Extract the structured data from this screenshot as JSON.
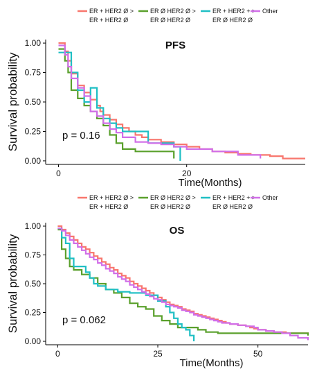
{
  "chart_data": [
    {
      "type": "line",
      "step": true,
      "title": "PFS",
      "xlabel": "Time(Months)",
      "ylabel": "Survival probability",
      "annotation": "p = 0.16",
      "xlim": [
        -2,
        38.5
      ],
      "ylim": [
        -0.03,
        1.03
      ],
      "xticks": [
        0,
        20
      ],
      "yticks": [
        "0.00",
        "0.25",
        "0.50",
        "0.75",
        "1.00"
      ],
      "legend": [
        {
          "line1": "ER + HER2 Ø >",
          "line2": "ER + HER2 Ø",
          "color": "#f8766d"
        },
        {
          "line1": "ER Ø HER2 Ø >",
          "line2": "ER Ø HER2 Ø",
          "color": "#5aa02c"
        },
        {
          "line1": "ER + HER2 + >",
          "line2": "ER Ø HER2 Ø",
          "color": "#1fbfc4"
        },
        {
          "line1": "Other",
          "line2": "",
          "color": "#d16ee8"
        }
      ],
      "series": [
        {
          "color": "#f8766d",
          "x": [
            0,
            1,
            1.5,
            2,
            3,
            4,
            5,
            6,
            6.5,
            7,
            8,
            9,
            10,
            11,
            12,
            13,
            14,
            16,
            18,
            20,
            22,
            24,
            26,
            28,
            30,
            33,
            35,
            38.5
          ],
          "y": [
            1.0,
            0.93,
            0.85,
            0.74,
            0.64,
            0.58,
            0.52,
            0.47,
            0.42,
            0.39,
            0.35,
            0.31,
            0.28,
            0.25,
            0.22,
            0.2,
            0.18,
            0.16,
            0.14,
            0.12,
            0.1,
            0.08,
            0.07,
            0.06,
            0.05,
            0.04,
            0.02,
            0.02
          ]
        },
        {
          "color": "#5aa02c",
          "x": [
            0,
            1,
            1.5,
            2,
            3,
            4,
            5,
            6,
            7,
            8,
            9,
            10,
            12,
            16,
            18
          ],
          "y": [
            0.95,
            0.85,
            0.75,
            0.6,
            0.53,
            0.47,
            0.42,
            0.36,
            0.3,
            0.22,
            0.15,
            0.1,
            0.08,
            0.08,
            0.02
          ]
        },
        {
          "color": "#1fbfc4",
          "x": [
            0,
            1.5,
            2,
            3,
            4,
            5,
            6,
            7,
            8,
            9,
            10,
            14,
            18,
            19
          ],
          "y": [
            0.92,
            0.92,
            0.75,
            0.6,
            0.5,
            0.62,
            0.45,
            0.36,
            0.32,
            0.28,
            0.25,
            0.15,
            0.12,
            0.0
          ]
        },
        {
          "color": "#d16ee8",
          "x": [
            0,
            1,
            1.5,
            2,
            3,
            4,
            5,
            6,
            7,
            8,
            9,
            10,
            12,
            14,
            16,
            18,
            20,
            24,
            28,
            31.5
          ],
          "y": [
            0.98,
            0.9,
            0.8,
            0.7,
            0.62,
            0.55,
            0.42,
            0.38,
            0.32,
            0.27,
            0.24,
            0.2,
            0.16,
            0.15,
            0.14,
            0.12,
            0.1,
            0.08,
            0.05,
            0.02
          ]
        }
      ]
    },
    {
      "type": "line",
      "step": true,
      "title": "OS",
      "xlabel": "Time(Months)",
      "ylabel": "Survival probability",
      "annotation": "p = 0.062",
      "xlim": [
        -3,
        62.5
      ],
      "ylim": [
        -0.03,
        1.03
      ],
      "xticks": [
        0,
        25,
        50
      ],
      "yticks": [
        "0.00",
        "0.25",
        "0.50",
        "0.75",
        "1.00"
      ],
      "legend": [
        {
          "line1": "ER + HER2 Ø >",
          "line2": "ER + HER2 Ø",
          "color": "#f8766d"
        },
        {
          "line1": "ER Ø HER2 Ø >",
          "line2": "ER Ø HER2 Ø",
          "color": "#5aa02c"
        },
        {
          "line1": "ER + HER2 + >",
          "line2": "ER Ø HER2 Ø",
          "color": "#1fbfc4"
        },
        {
          "line1": "Other",
          "line2": "",
          "color": "#d16ee8"
        }
      ],
      "series": [
        {
          "color": "#f8766d",
          "x": [
            0,
            1,
            2,
            3,
            4,
            5,
            6,
            7,
            8,
            9,
            10,
            11,
            12,
            13,
            14,
            15,
            16,
            17,
            18,
            19,
            20,
            21,
            22,
            23,
            24,
            25,
            26,
            27,
            28,
            29,
            30,
            31,
            32,
            33,
            34,
            35,
            36,
            37,
            38,
            39,
            40,
            41,
            42,
            43,
            44,
            45,
            46,
            47,
            48,
            49,
            50,
            51,
            52,
            53,
            54,
            55,
            56,
            57,
            58,
            59,
            60,
            62.5
          ],
          "y": [
            1.0,
            0.97,
            0.94,
            0.91,
            0.88,
            0.85,
            0.82,
            0.8,
            0.77,
            0.74,
            0.72,
            0.69,
            0.67,
            0.64,
            0.62,
            0.59,
            0.57,
            0.55,
            0.52,
            0.5,
            0.48,
            0.46,
            0.44,
            0.42,
            0.4,
            0.38,
            0.36,
            0.34,
            0.32,
            0.31,
            0.3,
            0.28,
            0.27,
            0.26,
            0.24,
            0.23,
            0.22,
            0.21,
            0.2,
            0.19,
            0.18,
            0.17,
            0.16,
            0.15,
            0.15,
            0.14,
            0.14,
            0.13,
            0.12,
            0.11,
            0.1,
            0.1,
            0.09,
            0.09,
            0.08,
            0.08,
            0.08,
            0.07,
            0.07,
            0.07,
            0.07,
            0.06
          ]
        },
        {
          "color": "#5aa02c",
          "x": [
            0,
            1,
            2,
            3,
            4,
            6,
            8,
            10,
            12,
            14,
            16,
            18,
            20,
            22,
            24,
            26,
            28,
            30,
            33,
            35,
            37,
            40,
            45,
            50,
            55,
            60,
            62.5
          ],
          "y": [
            0.97,
            0.8,
            0.72,
            0.65,
            0.62,
            0.58,
            0.55,
            0.5,
            0.45,
            0.42,
            0.38,
            0.33,
            0.3,
            0.28,
            0.22,
            0.18,
            0.15,
            0.12,
            0.12,
            0.1,
            0.08,
            0.07,
            0.07,
            0.07,
            0.07,
            0.07,
            0.05
          ]
        },
        {
          "color": "#1fbfc4",
          "x": [
            0,
            1,
            2,
            3,
            4,
            5,
            7,
            8,
            9,
            10,
            12,
            15,
            18,
            20,
            22,
            25,
            27,
            28,
            29,
            30,
            31,
            32,
            33,
            34
          ],
          "y": [
            0.98,
            0.9,
            0.85,
            0.72,
            0.65,
            0.65,
            0.6,
            0.55,
            0.5,
            0.48,
            0.45,
            0.43,
            0.42,
            0.42,
            0.4,
            0.35,
            0.3,
            0.25,
            0.2,
            0.15,
            0.12,
            0.1,
            0.05,
            0.0
          ]
        },
        {
          "color": "#d16ee8",
          "x": [
            0,
            1,
            2,
            3,
            4,
            5,
            6,
            7,
            8,
            9,
            10,
            11,
            12,
            13,
            14,
            15,
            16,
            17,
            18,
            19,
            20,
            21,
            22,
            23,
            24,
            25,
            26,
            27,
            28,
            29,
            30,
            31,
            32,
            33,
            34,
            35,
            36,
            37,
            38,
            39,
            40,
            41,
            42,
            43,
            44,
            45,
            46,
            47,
            48,
            49,
            50,
            52,
            54,
            56,
            58,
            60,
            62.5
          ],
          "y": [
            0.98,
            0.96,
            0.92,
            0.88,
            0.85,
            0.82,
            0.79,
            0.76,
            0.73,
            0.71,
            0.68,
            0.66,
            0.63,
            0.61,
            0.59,
            0.56,
            0.54,
            0.52,
            0.49,
            0.47,
            0.45,
            0.43,
            0.41,
            0.39,
            0.37,
            0.36,
            0.34,
            0.32,
            0.31,
            0.3,
            0.29,
            0.27,
            0.26,
            0.25,
            0.23,
            0.22,
            0.21,
            0.2,
            0.19,
            0.18,
            0.17,
            0.16,
            0.16,
            0.15,
            0.15,
            0.14,
            0.14,
            0.13,
            0.13,
            0.12,
            0.1,
            0.09,
            0.08,
            0.07,
            0.05,
            0.03,
            0.01
          ]
        }
      ]
    }
  ]
}
